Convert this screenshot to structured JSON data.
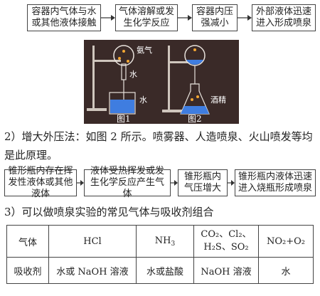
{
  "flow1": [
    "容器内气体与水或其他液体接触",
    "气体溶解或发生化学反应",
    "容器内压强减小",
    "外部液体迅速进入形成喷泉"
  ],
  "figures": {
    "fig1_labels": {
      "gas": "氨气",
      "water_top": "水",
      "water_bottom": "水"
    },
    "fig2_labels": {
      "alcohol": "酒精"
    },
    "captions": [
      "图1",
      "图2"
    ],
    "colors": {
      "panel": "#3a2a28",
      "liquid": "#3f7de0",
      "fountain": "#f4a733"
    }
  },
  "section2": {
    "line1": "2）增大外压法：如图 2 所示。喷雾器、人造喷泉、火山喷发等均",
    "line2": "是此原理。"
  },
  "flow2": [
    "锥形瓶内存在挥发性液体或其他液体",
    "液体受热挥发或发生化学反应产生气体",
    "锥形瓶内气压增大",
    "锥形瓶内液体迅速进入烧瓶形成喷泉"
  ],
  "section3": {
    "title": "3）可以做喷泉实验的常见气体与吸收剂组合"
  },
  "table": {
    "row1": {
      "header": "气体",
      "c1": "HCl",
      "c2_base": "NH",
      "c2_sub": "3",
      "c3_line1": "CO₂、Cl₂、",
      "c3_line2": "H₂S、SO₂",
      "c4": "NO₂+O₂"
    },
    "row2": {
      "header": "吸收剂",
      "c1": "水或 NaOH 溶液",
      "c2": "水或盐酸",
      "c3": "NaOH 溶液",
      "c4": "水"
    }
  }
}
